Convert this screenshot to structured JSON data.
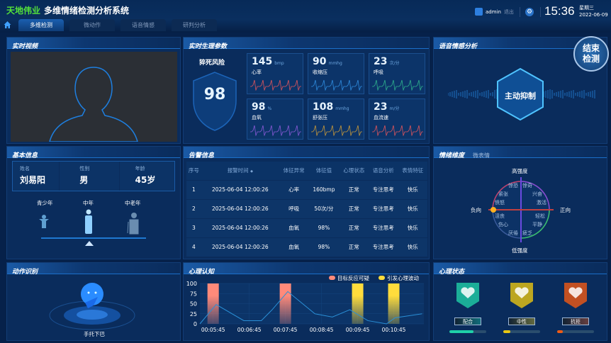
{
  "header": {
    "brand": "天地伟业",
    "title": "多维情绪检测分析系统",
    "user": "admin",
    "logout": "退出",
    "time": "15:36",
    "weekday": "星期三",
    "date": "2022-06-09"
  },
  "tabs": [
    {
      "label": "多维检测",
      "active": true
    },
    {
      "label": "微动作"
    },
    {
      "label": "语音情感"
    },
    {
      "label": "研判分析"
    }
  ],
  "video": {
    "title": "实时视频"
  },
  "physio": {
    "title": "实时生理参数",
    "risk_label": "猝死风险",
    "risk_value": "98",
    "cards": [
      {
        "value": "145",
        "unit": "bmp",
        "label": "心率",
        "color": "#e0555c"
      },
      {
        "value": "90",
        "unit": "mmhg",
        "label": "收缩压",
        "color": "#2f8de0"
      },
      {
        "value": "23",
        "unit": "次/分",
        "label": "呼吸",
        "color": "#2fb38e"
      },
      {
        "value": "98",
        "unit": "%",
        "label": "血氧",
        "color": "#8a5ad8"
      },
      {
        "value": "108",
        "unit": "mmhg",
        "label": "舒张压",
        "color": "#c99a3a"
      },
      {
        "value": "23",
        "unit": "m/分",
        "label": "血流速",
        "color": "#e0555c"
      }
    ]
  },
  "speech": {
    "title": "语音情感分析",
    "result": "主动抑制",
    "end_button": "结束检测"
  },
  "basic": {
    "title": "基本信息",
    "fields": [
      {
        "label": "姓名",
        "value": "刘易阳"
      },
      {
        "label": "性别",
        "value": "男"
      },
      {
        "label": "年龄",
        "value": "45岁"
      }
    ],
    "age_groups": [
      "青少年",
      "中年",
      "中老年"
    ],
    "selected_age_group": "中年"
  },
  "alerts": {
    "title": "告警信息",
    "columns": [
      "序号",
      "报警时间",
      "体征异常",
      "体征值",
      "心理状态",
      "语音分析",
      "表情特征"
    ],
    "sort_icon": "◆",
    "rows": [
      [
        "1",
        "2025-06-04 12:00:26",
        "心率",
        "160bmp",
        "正常",
        "专注思考",
        "快乐"
      ],
      [
        "2",
        "2025-06-04 12:00:26",
        "呼吸",
        "50次/分",
        "正常",
        "专注思考",
        "快乐"
      ],
      [
        "3",
        "2025-06-04 12:00:26",
        "血氧",
        "98%",
        "正常",
        "专注思考",
        "快乐"
      ],
      [
        "4",
        "2025-06-04 12:00:26",
        "血氧",
        "98%",
        "正常",
        "专注思考",
        "快乐"
      ]
    ]
  },
  "emotion": {
    "title": "情绪维度",
    "subtitle": "微表情",
    "axes": {
      "top": "高强度",
      "bottom": "低强度",
      "left": "负向",
      "right": "正向"
    },
    "labels": [
      "惊恐",
      "惊奇",
      "紧张",
      "兴奋",
      "愤怒",
      "激活",
      "沮丧",
      "轻松",
      "伤心",
      "平静",
      "厌倦",
      "疲乏"
    ],
    "current": "愤怒"
  },
  "action": {
    "title": "动作识别",
    "result": "手托下巴"
  },
  "cognition": {
    "title": "心理认知"
  },
  "chart_data": {
    "type": "bar+line",
    "title": "",
    "xlabel": "",
    "ylabel": "",
    "ylim": [
      0,
      100
    ],
    "xlim": [
      "00:05:23",
      "00:11:35"
    ],
    "grid": true,
    "legend": "top-right",
    "yticks": [
      0,
      25,
      50,
      75,
      100
    ],
    "xticks": [
      "00:05:45",
      "00:06:45",
      "00:07:45",
      "00:08:45",
      "00:09:45",
      "00:10:45"
    ],
    "legend_items": [
      {
        "name": "目标反应可疑",
        "color": "#ff8a7a"
      },
      {
        "name": "引发心理波动",
        "color": "#ffdc3c"
      }
    ],
    "bars": [
      {
        "x": "00:05:45",
        "value": 100,
        "series": "目标反应可疑"
      },
      {
        "x": "00:07:45",
        "value": 100,
        "series": "目标反应可疑"
      },
      {
        "x": "00:09:45",
        "value": 100,
        "series": "引发心理波动"
      },
      {
        "x": "00:10:45",
        "value": 100,
        "series": "引发心理波动"
      }
    ],
    "line": {
      "color": "#2a8fd6",
      "points": [
        [
          "00:05:23",
          0
        ],
        [
          "00:05:50",
          48
        ],
        [
          "00:06:36",
          8
        ],
        [
          "00:07:05",
          8
        ],
        [
          "00:07:23",
          35
        ],
        [
          "00:07:49",
          80
        ],
        [
          "00:08:34",
          25
        ],
        [
          "00:09:03",
          17
        ],
        [
          "00:09:32",
          35
        ],
        [
          "00:10:02",
          8
        ],
        [
          "00:10:33",
          0
        ],
        [
          "00:10:47",
          15
        ],
        [
          "00:11:32",
          25
        ]
      ]
    }
  },
  "psych": {
    "title": "心理状态",
    "states": [
      {
        "label": "配合",
        "level": 0.65,
        "color": "#1fd0a8"
      },
      {
        "label": "中性",
        "level": 0.2,
        "color": "#e8c612"
      },
      {
        "label": "抗拒",
        "level": 0.15,
        "color": "#f05a14"
      }
    ]
  }
}
